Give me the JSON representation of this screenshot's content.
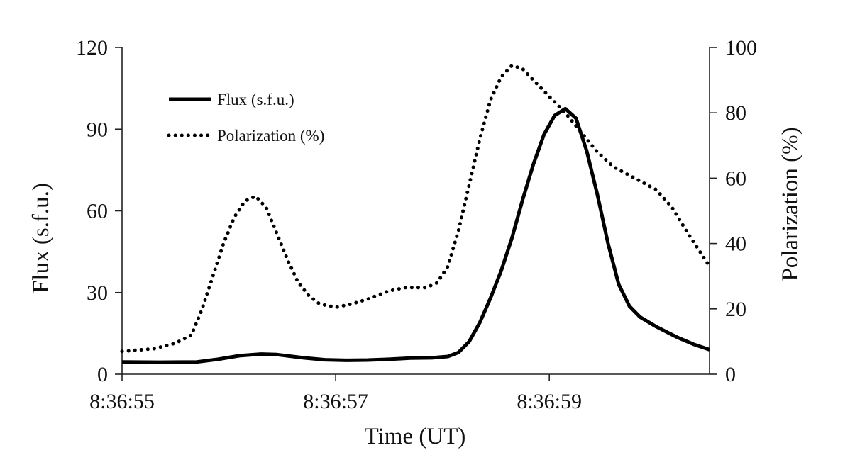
{
  "chart_data": {
    "type": "line",
    "x_unit": "seconds after 8:36:55 UT",
    "xlim": [
      0,
      5.5
    ],
    "x_ticks": [
      {
        "x": 0,
        "label": "8:36:55"
      },
      {
        "x": 2,
        "label": "8:36:57"
      },
      {
        "x": 4,
        "label": "8:36:59"
      }
    ],
    "xlabel": "Time (UT)",
    "y_left": {
      "label": "Flux (s.f.u.)",
      "lim": [
        0,
        120
      ],
      "ticks": [
        0,
        30,
        60,
        90,
        120
      ]
    },
    "y_right": {
      "label": "Polarization (%)",
      "lim": [
        0,
        100
      ],
      "ticks": [
        0,
        20,
        40,
        60,
        80,
        100
      ]
    },
    "grid": false,
    "legend": "top-left",
    "series": [
      {
        "name": "Flux (s.f.u.)",
        "axis": "left",
        "style": "solid",
        "color": "#000000",
        "points": [
          [
            0.0,
            4.5
          ],
          [
            0.35,
            4.4
          ],
          [
            0.7,
            4.5
          ],
          [
            0.9,
            5.5
          ],
          [
            1.1,
            6.8
          ],
          [
            1.3,
            7.4
          ],
          [
            1.45,
            7.2
          ],
          [
            1.7,
            6.0
          ],
          [
            1.9,
            5.3
          ],
          [
            2.1,
            5.1
          ],
          [
            2.3,
            5.2
          ],
          [
            2.5,
            5.5
          ],
          [
            2.7,
            5.9
          ],
          [
            2.9,
            6.0
          ],
          [
            3.05,
            6.5
          ],
          [
            3.15,
            8.0
          ],
          [
            3.25,
            12.0
          ],
          [
            3.35,
            19.0
          ],
          [
            3.45,
            28.0
          ],
          [
            3.55,
            38.0
          ],
          [
            3.65,
            50.0
          ],
          [
            3.75,
            64.0
          ],
          [
            3.85,
            77.0
          ],
          [
            3.95,
            88.0
          ],
          [
            4.05,
            95.0
          ],
          [
            4.15,
            97.5
          ],
          [
            4.25,
            94.0
          ],
          [
            4.35,
            82.0
          ],
          [
            4.45,
            66.0
          ],
          [
            4.55,
            48.0
          ],
          [
            4.65,
            33.0
          ],
          [
            4.75,
            25.0
          ],
          [
            4.85,
            21.0
          ],
          [
            5.0,
            17.5
          ],
          [
            5.2,
            13.5
          ],
          [
            5.35,
            11.0
          ],
          [
            5.5,
            9.0
          ]
        ]
      },
      {
        "name": "Polarization (%)",
        "axis": "right",
        "style": "dotted",
        "color": "#000000",
        "points": [
          [
            0.0,
            7.0
          ],
          [
            0.3,
            7.8
          ],
          [
            0.5,
            9.5
          ],
          [
            0.65,
            12.0
          ],
          [
            0.75,
            20.0
          ],
          [
            0.85,
            30.0
          ],
          [
            0.95,
            40.0
          ],
          [
            1.05,
            48.0
          ],
          [
            1.15,
            53.0
          ],
          [
            1.25,
            54.5
          ],
          [
            1.35,
            51.0
          ],
          [
            1.45,
            43.0
          ],
          [
            1.55,
            35.0
          ],
          [
            1.65,
            28.0
          ],
          [
            1.75,
            24.0
          ],
          [
            1.85,
            21.5
          ],
          [
            2.0,
            20.5
          ],
          [
            2.15,
            21.5
          ],
          [
            2.3,
            23.0
          ],
          [
            2.5,
            25.5
          ],
          [
            2.65,
            26.5
          ],
          [
            2.85,
            26.5
          ],
          [
            2.95,
            28.0
          ],
          [
            3.05,
            33.0
          ],
          [
            3.15,
            44.0
          ],
          [
            3.25,
            58.0
          ],
          [
            3.35,
            72.0
          ],
          [
            3.45,
            84.0
          ],
          [
            3.55,
            91.0
          ],
          [
            3.65,
            94.5
          ],
          [
            3.75,
            93.5
          ],
          [
            3.85,
            90.0
          ],
          [
            4.0,
            85.0
          ],
          [
            4.15,
            80.0
          ],
          [
            4.3,
            74.0
          ],
          [
            4.45,
            68.0
          ],
          [
            4.6,
            63.5
          ],
          [
            4.8,
            60.0
          ],
          [
            5.0,
            56.5
          ],
          [
            5.15,
            51.0
          ],
          [
            5.3,
            43.0
          ],
          [
            5.45,
            35.5
          ],
          [
            5.5,
            33.0
          ]
        ]
      }
    ]
  }
}
